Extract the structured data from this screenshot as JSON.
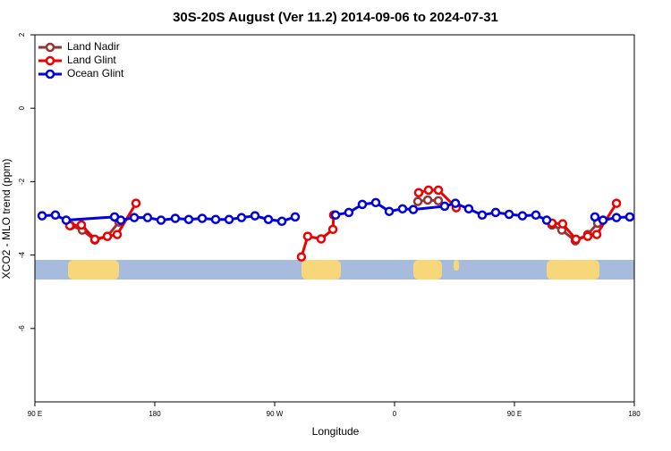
{
  "chart_data": {
    "type": "line",
    "title": "30S-20S August (Ver 11.2)   2014-09-06 to 2024-07-31",
    "x_label": "Longitude",
    "y_label": "XCO2 - MLO trend (ppm)",
    "xlim": [
      90,
      540
    ],
    "xticks": [
      {
        "value": 90,
        "label": "90 E"
      },
      180,
      {
        "value": 270,
        "label": "90 W"
      },
      {
        "value": 360,
        "label": "0"
      },
      {
        "value": 450,
        "label": "90 E"
      },
      {
        "value": 540,
        "label": "180"
      }
    ],
    "ylim": [
      -8,
      2
    ],
    "yticks": [
      -6,
      -4,
      -2,
      0,
      2
    ],
    "grid": false,
    "legend": "top-left",
    "series": [
      {
        "name": "Land Nadir",
        "color": "#993333",
        "x": [
          116.9,
          125.6,
          135,
          144.4,
          153.1,
          null,
          377.5,
          384.9,
          392.9,
          null,
          478.2,
          485.6,
          495.7,
          505,
          512.5
        ],
        "values": [
          -3.2,
          -3.32,
          -3.59,
          -3.49,
          -3.1,
          null,
          -2.54,
          -2.5,
          -2.52,
          null,
          -3.18,
          -3.32,
          -3.61,
          -3.44,
          -3.13
        ]
      },
      {
        "name": "Land Glint",
        "color": "#ee0000",
        "x": [
          116.2,
          124.9,
          135,
          144.4,
          151.8,
          165.9,
          null,
          290.1,
          294.8,
          304.9,
          313.7,
          314.3,
          null,
          378.1,
          385.5,
          392.9,
          406.3,
          null,
          478.2,
          486.2,
          496.2,
          505,
          511.8,
          526.6
        ],
        "values": [
          -3.2,
          -3.18,
          -3.57,
          -3.49,
          -3.44,
          -2.59,
          null,
          -4.05,
          -3.49,
          -3.56,
          -3.3,
          -2.91,
          null,
          -2.3,
          -2.23,
          -2.23,
          -2.71,
          null,
          -3.13,
          -3.15,
          -3.57,
          -3.49,
          -3.44,
          -2.59
        ]
      },
      {
        "name": "Ocean Glint",
        "color": "#0000dd",
        "x": [
          95.4,
          105.4,
          113.5,
          149.8,
          154.5,
          164.6,
          174.6,
          184.7,
          195.4,
          205.5,
          215.6,
          225.7,
          235.8,
          245.1,
          255.2,
          265.3,
          275.4,
          285.4,
          null,
          315.7,
          325.7,
          335.8,
          345.9,
          356,
          366,
          374.1,
          397.6,
          405.7,
          415.7,
          425.8,
          435.9,
          446,
          456,
          466.1,
          474.2,
          null,
          510.4,
          516.5,
          526.6,
          536.6
        ],
        "values": [
          -2.93,
          -2.91,
          -3.05,
          -2.96,
          -3.05,
          -2.98,
          -2.98,
          -3.05,
          -3.0,
          -3.03,
          -3.0,
          -3.03,
          -3.03,
          -2.98,
          -2.93,
          -3.03,
          -3.08,
          -2.96,
          null,
          -2.91,
          -2.84,
          -2.62,
          -2.57,
          -2.81,
          -2.74,
          -2.76,
          -2.67,
          -2.59,
          -2.74,
          -2.91,
          -2.84,
          -2.89,
          -2.93,
          -2.91,
          -3.05,
          null,
          -2.96,
          -3.05,
          -2.98,
          -2.96
        ]
      }
    ]
  }
}
